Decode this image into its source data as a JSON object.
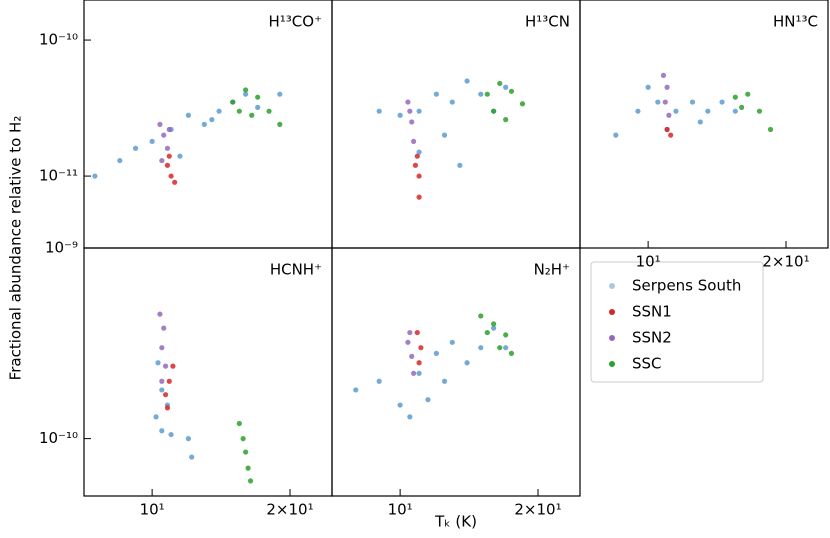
{
  "chart_data": [
    {
      "type": "scatter",
      "title": "H¹³CO⁺",
      "xscale": "log",
      "yscale": "log",
      "xlim": [
        7.1,
        24.7
      ],
      "ylim": [
        2.96e-12,
        1.97e-10
      ],
      "yticks": [
        {
          "value": 1e-10,
          "label": "10⁻¹⁰"
        },
        {
          "value": 1e-11,
          "label": "10⁻¹¹"
        }
      ],
      "series": [
        {
          "color": "#5b9bd0",
          "x": [
            7.5,
            8.5,
            9.2,
            10,
            11,
            12,
            13,
            14,
            15,
            16,
            17,
            19,
            11.5,
            13.5
          ],
          "values": [
            1e-11,
            1.3e-11,
            1.6e-11,
            1.8e-11,
            2.2e-11,
            2.8e-11,
            2.4e-11,
            3e-11,
            3.5e-11,
            4e-11,
            3.2e-11,
            4e-11,
            1.4e-11,
            2.6e-11
          ]
        },
        {
          "color": "#d62728",
          "x": [
            10.8,
            11,
            11.2,
            10.9
          ],
          "values": [
            1.2e-11,
            1e-11,
            9e-12,
            1.4e-11
          ]
        },
        {
          "color": "#9467bd",
          "x": [
            10.4,
            10.6,
            10.8,
            10.5,
            10.9
          ],
          "values": [
            2.4e-11,
            2e-11,
            1.6e-11,
            1.3e-11,
            2.2e-11
          ]
        },
        {
          "color": "#2ca02c",
          "x": [
            15,
            16,
            17,
            18,
            19,
            16.5,
            15.5
          ],
          "values": [
            3.5e-11,
            4.3e-11,
            3.8e-11,
            3e-11,
            2.4e-11,
            2.8e-11,
            3e-11
          ]
        }
      ]
    },
    {
      "type": "scatter",
      "title": "H¹³CN",
      "xscale": "log",
      "yscale": "log",
      "xlim": [
        7.1,
        24.7
      ],
      "ylim": [
        2.96e-12,
        1.97e-10
      ],
      "series": [
        {
          "color": "#5b9bd0",
          "x": [
            9,
            10,
            11,
            12,
            13,
            14,
            15,
            16,
            17,
            12.5,
            13.5,
            11
          ],
          "values": [
            3e-11,
            2.8e-11,
            3e-11,
            4e-11,
            3.5e-11,
            5e-11,
            4e-11,
            3e-11,
            4.5e-11,
            2e-11,
            1.2e-11,
            1.5e-11
          ]
        },
        {
          "color": "#d62728",
          "x": [
            10.9,
            11,
            11,
            10.8
          ],
          "values": [
            1.4e-11,
            1e-11,
            7e-12,
            1.2e-11
          ]
        },
        {
          "color": "#9467bd",
          "x": [
            10.4,
            10.6,
            10.7,
            10.5
          ],
          "values": [
            3.5e-11,
            2.5e-11,
            1.8e-11,
            3e-11
          ]
        },
        {
          "color": "#2ca02c",
          "x": [
            15.5,
            16.5,
            17.5,
            18.5,
            16,
            17
          ],
          "values": [
            4e-11,
            4.8e-11,
            4.2e-11,
            3.4e-11,
            3e-11,
            2.6e-11
          ]
        }
      ]
    },
    {
      "type": "scatter",
      "title": "HN¹³C",
      "xscale": "log",
      "yscale": "log",
      "xlim": [
        7.1,
        24.7
      ],
      "ylim": [
        2.96e-12,
        1.97e-10
      ],
      "xticks": [
        {
          "value": 10,
          "label": "10¹"
        },
        {
          "value": 20,
          "label": "2×10¹"
        }
      ],
      "series": [
        {
          "color": "#5b9bd0",
          "x": [
            8.5,
            9.5,
            10,
            10.5,
            11.5,
            12.5,
            13.5,
            14.5,
            15.5,
            13,
            11
          ],
          "values": [
            2e-11,
            3e-11,
            4.5e-11,
            3.5e-11,
            3e-11,
            3.5e-11,
            3e-11,
            3.5e-11,
            3e-11,
            2.5e-11,
            2.2e-11
          ]
        },
        {
          "color": "#d62728",
          "x": [
            11,
            11.2
          ],
          "values": [
            2.2e-11,
            2e-11
          ]
        },
        {
          "color": "#9467bd",
          "x": [
            10.8,
            11,
            10.9,
            11.1
          ],
          "values": [
            5.5e-11,
            4.5e-11,
            3.5e-11,
            2.8e-11
          ]
        },
        {
          "color": "#2ca02c",
          "x": [
            15.5,
            16.5,
            17.5,
            18.5,
            16
          ],
          "values": [
            3.8e-11,
            4e-11,
            3e-11,
            2.2e-11,
            3.2e-11
          ]
        }
      ]
    },
    {
      "type": "scatter",
      "title": "HCNH⁺",
      "xscale": "log",
      "yscale": "log",
      "xlim": [
        7.1,
        24.7
      ],
      "ylim": [
        5e-11,
        1e-09
      ],
      "xticks": [
        {
          "value": 10,
          "label": "10¹"
        },
        {
          "value": 20,
          "label": "2×10¹"
        }
      ],
      "yticks": [
        {
          "value": 1e-09,
          "label": "10⁻⁹"
        },
        {
          "value": 1e-10,
          "label": "10⁻¹⁰"
        }
      ],
      "series": [
        {
          "color": "#5b9bd0",
          "x": [
            10.3,
            10.5,
            10.8,
            10.5,
            11,
            12,
            12.2,
            10.2
          ],
          "values": [
            2.5e-10,
            1.8e-10,
            1.5e-10,
            1.1e-10,
            1.05e-10,
            1e-10,
            8e-11,
            1.3e-10
          ]
        },
        {
          "color": "#d62728",
          "x": [
            10.9,
            11.1,
            10.7,
            10.8
          ],
          "values": [
            2e-10,
            2.4e-10,
            1.7e-10,
            1.45e-10
          ]
        },
        {
          "color": "#9467bd",
          "x": [
            10.4,
            10.6,
            10.5,
            10.7,
            10.5
          ],
          "values": [
            4.5e-10,
            3.8e-10,
            3e-10,
            2.4e-10,
            2e-10
          ]
        },
        {
          "color": "#2ca02c",
          "x": [
            15.5,
            15.8,
            16,
            16.2,
            16.4
          ],
          "values": [
            1.2e-10,
            1e-10,
            8.5e-11,
            7e-11,
            6e-11
          ]
        }
      ]
    },
    {
      "type": "scatter",
      "title": "N₂H⁺",
      "xscale": "log",
      "yscale": "log",
      "xlim": [
        7.1,
        24.7
      ],
      "ylim": [
        5e-11,
        1e-09
      ],
      "xticks": [
        {
          "value": 10,
          "label": "10¹"
        },
        {
          "value": 20,
          "label": "2×10¹"
        }
      ],
      "series": [
        {
          "color": "#5b9bd0",
          "x": [
            8,
            9,
            10,
            10.5,
            11,
            12,
            13,
            14,
            15,
            16,
            17,
            12.5,
            11.5
          ],
          "values": [
            1.8e-10,
            2e-10,
            1.5e-10,
            1.3e-10,
            2.2e-10,
            2.8e-10,
            3.2e-10,
            2.5e-10,
            3e-10,
            3.8e-10,
            3e-10,
            2e-10,
            1.6e-10
          ]
        },
        {
          "color": "#d62728",
          "x": [
            10.9,
            11.1,
            11
          ],
          "values": [
            3.6e-10,
            3e-10,
            2.5e-10
          ]
        },
        {
          "color": "#9467bd",
          "x": [
            10.4,
            10.6,
            10.7,
            10.5
          ],
          "values": [
            3.2e-10,
            2.7e-10,
            2.2e-10,
            3.6e-10
          ]
        },
        {
          "color": "#2ca02c",
          "x": [
            15,
            16,
            17,
            17.5,
            16.5,
            15.5
          ],
          "values": [
            4.4e-10,
            4e-10,
            3.5e-10,
            2.8e-10,
            3e-10,
            3.6e-10
          ]
        }
      ]
    }
  ],
  "figure": {
    "xlabel": "Tₖ (K)",
    "ylabel": "Fractional abundance relative to H₂",
    "legend": [
      {
        "name": "Serpens South",
        "color": "#a9c9e0"
      },
      {
        "name": "SSN1",
        "color": "#d62728"
      },
      {
        "name": "SSN2",
        "color": "#9467bd"
      },
      {
        "name": "SSC",
        "color": "#2ca02c"
      }
    ]
  }
}
